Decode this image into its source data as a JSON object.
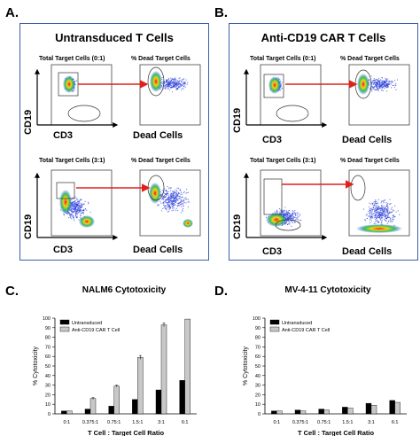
{
  "panels": {
    "A": {
      "letter": "A.",
      "title": "Untransduced T Cells",
      "top_left_title": "Total Target Cells (0:1)",
      "top_right_title": "% Dead Target Cells",
      "bottom_left_title": "Total Target Cells (3:1)",
      "bottom_right_title": "% Dead Target Cells",
      "ylabel": "CD19",
      "xlabel_left": "CD3",
      "xlabel_right": "Dead Cells"
    },
    "B": {
      "letter": "B.",
      "title": "Anti-CD19 CAR T Cells",
      "top_left_title": "Total Target Cells (0:1)",
      "top_right_title": "% Dead Target Cells",
      "bottom_left_title": "Total Target Cells (3:1)",
      "bottom_right_title": "% Dead Target Cells",
      "ylabel": "CD19",
      "xlabel_left": "CD3",
      "xlabel_right": "Dead Cells"
    },
    "C": {
      "letter": "C."
    },
    "D": {
      "letter": "D."
    }
  },
  "colors": {
    "frame": "#3b5ea8",
    "arrow": "#e0201a",
    "untransduced": "#000000",
    "car": "#c8c8c8"
  },
  "chart_data": [
    {
      "type": "bar",
      "title": "NALM6 Cytotoxicity",
      "xlabel": "T Cell : Target Cell Ratio",
      "ylabel": "% Cytotoxicity",
      "categories": [
        "0:1",
        "0.375:1",
        "0.75:1",
        "1.5:1",
        "3:1",
        "6:1"
      ],
      "ylim": [
        0,
        100
      ],
      "yticks": [
        0,
        10,
        20,
        30,
        40,
        50,
        60,
        70,
        80,
        90,
        100
      ],
      "legend_position": "top-left",
      "series": [
        {
          "name": "Untransduced",
          "color": "#000000",
          "values": [
            3,
            5,
            8,
            15,
            25,
            35
          ]
        },
        {
          "name": "Anti-CD19 CAR T Cell",
          "color": "#c8c8c8",
          "values": [
            3,
            16,
            29,
            59,
            93,
            99
          ],
          "errors": [
            0,
            1,
            1,
            2,
            2,
            0
          ]
        }
      ]
    },
    {
      "type": "bar",
      "title": "MV-4-11 Cytotoxicity",
      "xlabel": "T Cell : Target Cell Ratio",
      "ylabel": "% Cytotoxicity",
      "categories": [
        "0:1",
        "0.375:1",
        "0.75:1",
        "1.5:1",
        "3:1",
        "6:1"
      ],
      "ylim": [
        0,
        100
      ],
      "yticks": [
        0,
        10,
        20,
        30,
        40,
        50,
        60,
        70,
        80,
        90,
        100
      ],
      "legend_position": "top-left",
      "series": [
        {
          "name": "Untransduced",
          "color": "#000000",
          "values": [
            3,
            4,
            5,
            7,
            11,
            14
          ]
        },
        {
          "name": "Anti-CD19 CAR T Cell",
          "color": "#c8c8c8",
          "values": [
            3,
            3,
            4,
            6,
            9,
            12
          ]
        }
      ]
    }
  ]
}
